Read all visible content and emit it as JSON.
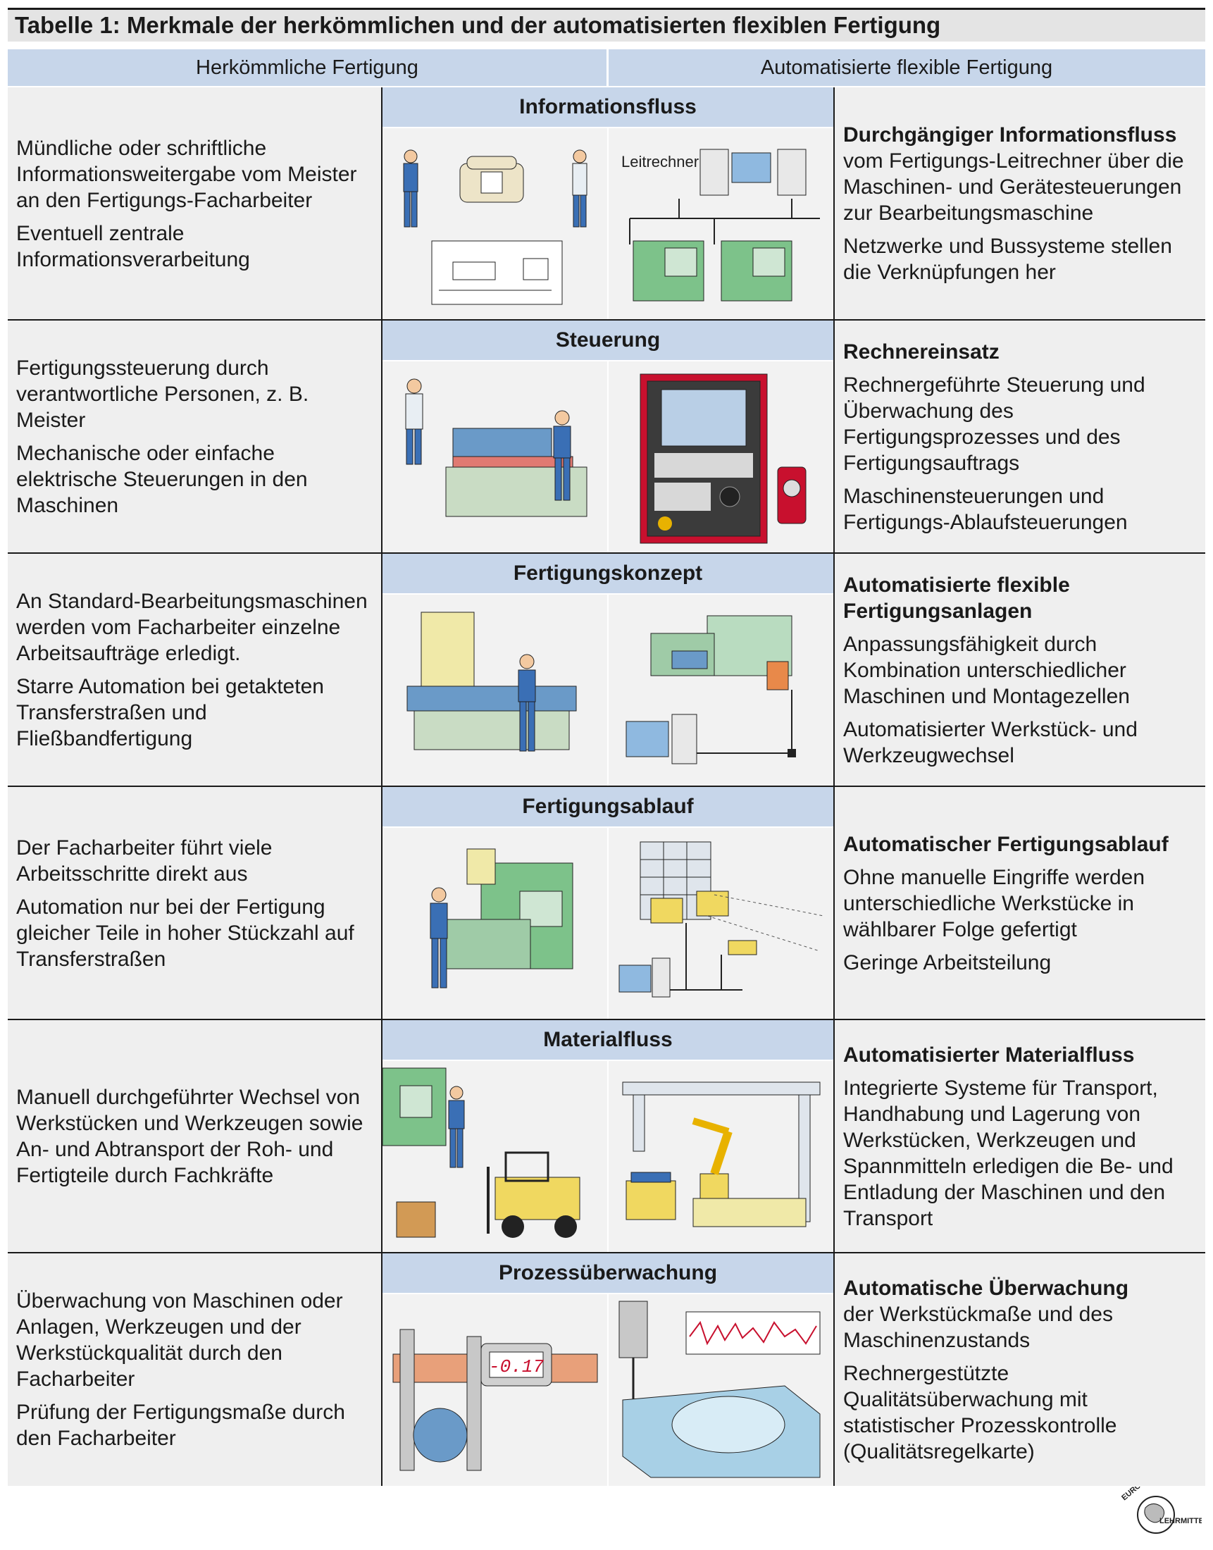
{
  "title": "Tabelle 1:  Merkmale der herkömmlichen und der automatisierten flexiblen Fertigung",
  "columns": {
    "left": "Herkömmliche Fertigung",
    "right": "Automatisierte flexible Fertigung"
  },
  "rows": [
    {
      "category": "Informationsfluss",
      "left": [
        "Mündliche oder schriftliche Informationsweitergabe vom Meister an den Fertigungs-Facharbeiter",
        "Eventuell zentrale Informationsverarbeitung"
      ],
      "right_heading": "Durchgängiger Informationsfluss",
      "right": [
        "vom Fertigungs-Leitrechner über die Maschinen- und Gerätesteuerungen zur Bearbeitungsmaschine",
        "Netzwerke und Bussysteme stellen die Verknüpfungen her"
      ],
      "image_label": "Leitrechner"
    },
    {
      "category": "Steuerung",
      "left": [
        "Fertigungssteuerung durch verantwortliche Personen, z. B. Meister",
        "Mechanische oder einfache elektrische Steuerungen in den Maschinen"
      ],
      "right_heading": "Rechnereinsatz",
      "right": [
        "Rechnergeführte Steuerung und Überwachung des Fertigungsprozesses und des Fertigungsauftrags",
        "Maschinensteuerungen und Fertigungs-Ablaufsteuerungen"
      ]
    },
    {
      "category": "Fertigungskonzept",
      "left": [
        "An Standard-Bearbeitungsmaschinen werden vom Facharbeiter einzelne Arbeitsaufträge erledigt.",
        "Starre Automation bei getakteten Transferstraßen und Fließbandfertigung"
      ],
      "right_heading": "Automatisierte flexible Fertigungsanlagen",
      "right": [
        "Anpassungsfähigkeit durch Kombination unterschiedlicher Maschinen und Montagezellen",
        "Automatisierter Werkstück- und Werkzeugwechsel"
      ]
    },
    {
      "category": "Fertigungsablauf",
      "left": [
        "Der Facharbeiter führt viele Arbeitsschritte direkt aus",
        "Automation nur bei der Fertigung gleicher Teile in hoher Stückzahl auf Transferstraßen"
      ],
      "right_heading": "Automatischer Fertigungsablauf",
      "right": [
        "Ohne manuelle Eingriffe werden unterschiedliche Werkstücke in wählbarer Folge gefertigt",
        "Geringe Arbeitsteilung"
      ]
    },
    {
      "category": "Materialfluss",
      "left": [
        "Manuell durchgeführter Wechsel von Werkstücken und Werkzeugen sowie An- und Abtransport der Roh- und Fertigteile durch Fachkräfte"
      ],
      "right_heading": "Automatisierter Materialfluss",
      "right": [
        "Integrierte Systeme für Transport, Handhabung und Lagerung von Werkstücken, Werkzeugen und Spannmitteln erledigen die Be- und Entladung der Maschinen und den Transport"
      ]
    },
    {
      "category": "Prozessüberwachung",
      "left": [
        "Überwachung von Maschinen oder Anlagen, Werkzeugen und der Werkstückqualität durch den Facharbeiter",
        "Prüfung der Fertigungsmaße durch den Facharbeiter"
      ],
      "right_heading": "Automatische Überwachung",
      "right": [
        "der Werkstückmaße und des Maschinenzustands",
        "Rechnergestützte Qualitätsüberwachung mit statistischer Prozesskontrolle (Qualitätsregelkarte)"
      ],
      "image_label": "-0.17"
    }
  ],
  "logo": {
    "top": "EUROPA",
    "bottom": "LEHRMITTEL"
  }
}
